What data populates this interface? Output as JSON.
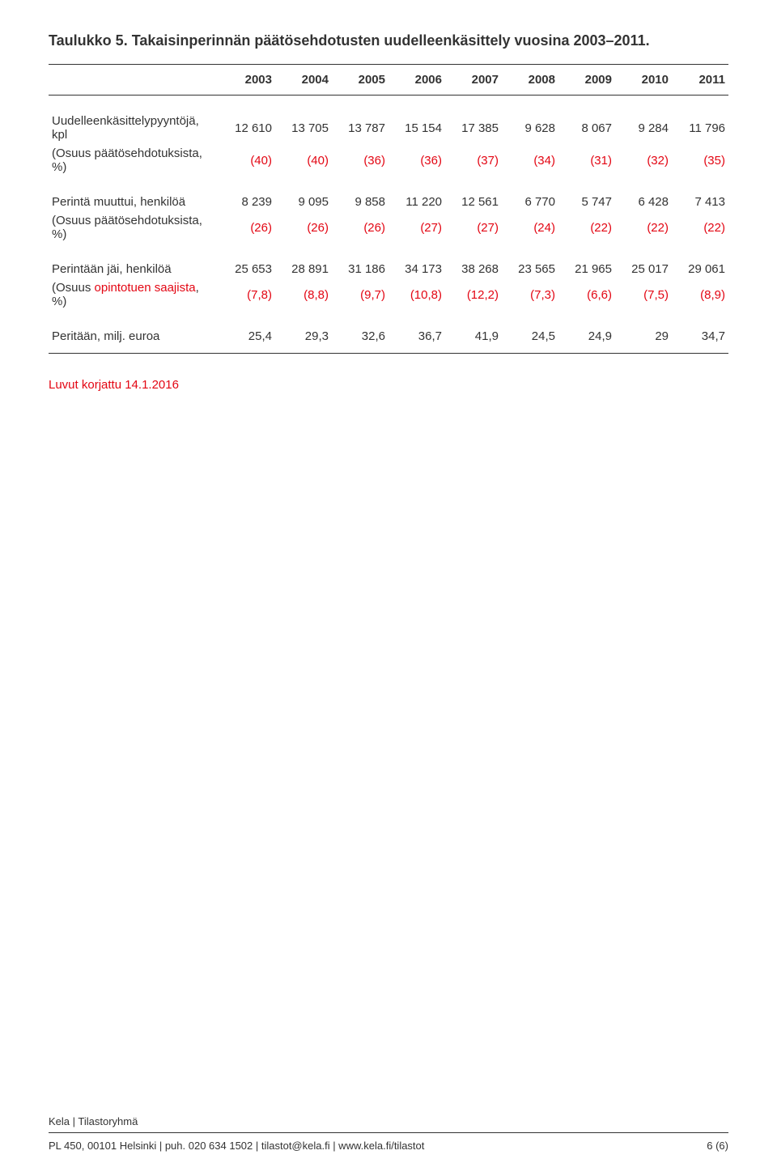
{
  "title": "Taulukko 5.  Takaisinperinnän päätösehdotusten uudelleenkäsittely vuosina 2003–2011.",
  "years": [
    "2003",
    "2004",
    "2005",
    "2006",
    "2007",
    "2008",
    "2009",
    "2010",
    "2011"
  ],
  "rows": [
    {
      "label": "Uudelleenkäsittelypyyntöjä, kpl",
      "values": [
        "12 610",
        "13 705",
        "13 787",
        "15 154",
        "17 385",
        "9 628",
        "8 067",
        "9 284",
        "11 796"
      ]
    },
    {
      "label": "(Osuus päätösehdotuksista, %)",
      "values": [
        "(40)",
        "(40)",
        "(36)",
        "(36)",
        "(37)",
        "(34)",
        "(31)",
        "(32)",
        "(35)"
      ],
      "red": true
    }
  ],
  "rows2": [
    {
      "label": "Perintä muuttui, henkilöä",
      "values": [
        "8 239",
        "9 095",
        "9 858",
        "11 220",
        "12 561",
        "6 770",
        "5 747",
        "6 428",
        "7 413"
      ]
    },
    {
      "label": "(Osuus päätösehdotuksista, %)",
      "values": [
        "(26)",
        "(26)",
        "(26)",
        "(27)",
        "(27)",
        "(24)",
        "(22)",
        "(22)",
        "(22)"
      ],
      "red": true
    }
  ],
  "rows3": [
    {
      "label": "Perintään jäi, henkilöä",
      "values": [
        "25 653",
        "28 891",
        "31 186",
        "34 173",
        "38 268",
        "23 565",
        "21 965",
        "25 017",
        "29 061"
      ]
    },
    {
      "label_pre": "(Osuus ",
      "label_red": "opintotuen saajista",
      "label_post": ", %)",
      "values": [
        "(7,8)",
        "(8,8)",
        "(9,7)",
        "(10,8)",
        "(12,2)",
        "(7,3)",
        "(6,6)",
        "(7,5)",
        "(8,9)"
      ],
      "red": true,
      "mixed_label": true
    }
  ],
  "rows4": [
    {
      "label": "Peritään, milj. euroa",
      "values": [
        "25,4",
        "29,3",
        "32,6",
        "36,7",
        "41,9",
        "24,5",
        "24,9",
        "29",
        "34,7"
      ]
    }
  ],
  "note": "Luvut korjattu 14.1.2016",
  "footer_top": "Kela | Tilastoryhmä",
  "footer_left": "PL 450, 00101 Helsinki | puh. 020 634 1502 | tilastot@kela.fi | www.kela.fi/tilastot",
  "footer_right": "6 (6)",
  "colors": {
    "text": "#333333",
    "red": "#e30613",
    "border": "#333333",
    "background": "#ffffff"
  }
}
